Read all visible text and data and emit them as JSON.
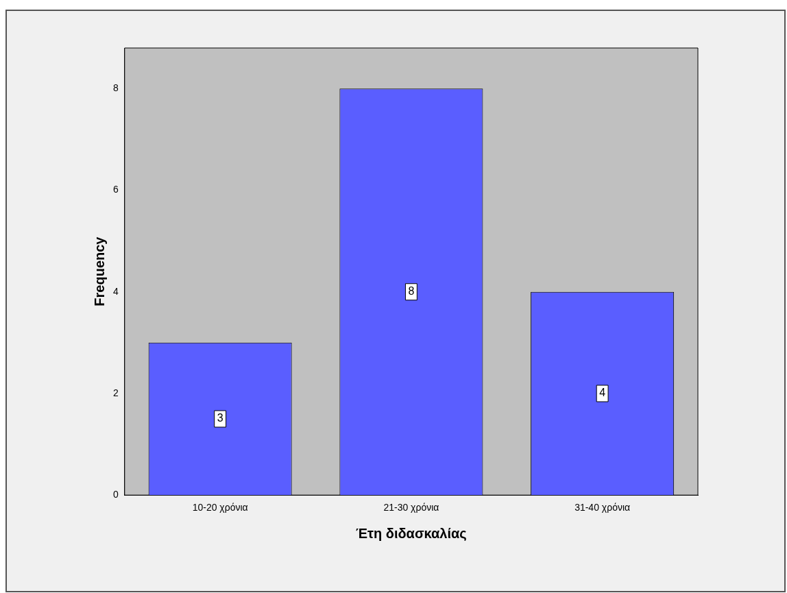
{
  "chart_data": {
    "type": "bar",
    "xlabel": "Έτη διδασκαλίας",
    "ylabel": "Frequency",
    "categories": [
      "10-20 χρόνια",
      "21-30 χρόνια",
      "31-40 χρόνια"
    ],
    "values": [
      3,
      8,
      4
    ],
    "color": "#5a5eff",
    "ylim": [
      0,
      8.8
    ],
    "yticks": [
      0,
      2,
      4,
      6,
      8
    ],
    "grid": false,
    "legend": false,
    "data_labels": true
  }
}
